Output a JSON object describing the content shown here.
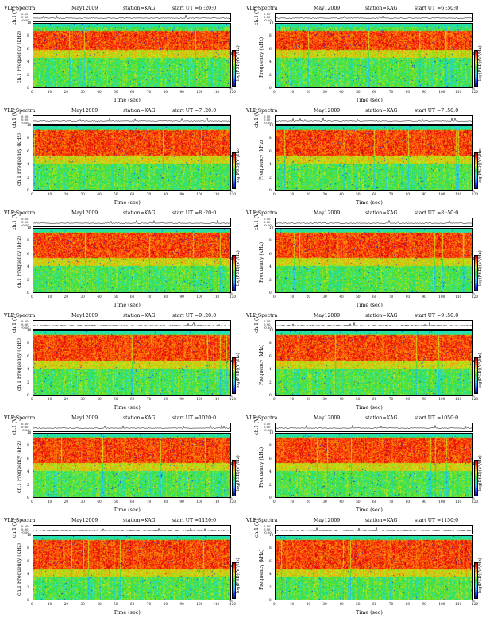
{
  "colors": {
    "background": "#ffffff",
    "spectrogram_base": "#3ac8e8",
    "wave_line": "#000000"
  },
  "common": {
    "station": "station=KAG",
    "x_axis_label": "Time (sec)",
    "wave_axis_label": "ch.1 (V)",
    "freq_axis_label_left": "ch.1 Frequency (kHz)",
    "freq_axis_label_right": "Frequency (kHz)",
    "colorbar_label": "log(PSD)(V²/Hz)",
    "wave_ticks": [
      "0.50",
      "0.00",
      "-0.50"
    ],
    "freq_ticks": [
      "0",
      "2",
      "4",
      "6",
      "8",
      "10"
    ],
    "time_ticks": [
      "0",
      "10",
      "20",
      "30",
      "40",
      "50",
      "60",
      "70",
      "80",
      "90",
      "100",
      "110",
      "120"
    ],
    "colorbar_ticks": [
      "-4",
      "-6"
    ]
  },
  "chart_data": [
    {
      "type": "heatmap",
      "title": "VLF Spectra",
      "date": "May12009",
      "station": "station=KAG",
      "start": "start  UT  =6 :20:0",
      "xlabel": "Time (sec)",
      "ylabel": "Frequency (kHz)",
      "xlim": [
        0,
        120
      ],
      "ylim": [
        0,
        10
      ],
      "intense_band_khz": [
        6,
        9
      ]
    },
    {
      "type": "heatmap",
      "title": "VLF Spectra",
      "date": "May12009",
      "station": "station=KAG",
      "start": "start  UT  =6 :50:0",
      "xlabel": "Time (sec)",
      "ylabel": "Frequency (kHz)",
      "xlim": [
        0,
        120
      ],
      "ylim": [
        0,
        10
      ],
      "intense_band_khz": [
        6,
        9
      ]
    },
    {
      "type": "heatmap",
      "title": "VLF Spectra",
      "date": "May12009",
      "station": "station=KAG",
      "start": "start  UT  =7 :20:0",
      "xlabel": "Time (sec)",
      "ylabel": "Frequency (kHz)",
      "xlim": [
        0,
        120
      ],
      "ylim": [
        0,
        10
      ],
      "intense_band_khz": [
        5.5,
        9.5
      ]
    },
    {
      "type": "heatmap",
      "title": "VLF Spectra",
      "date": "May12009",
      "station": "station=KAG",
      "start": "start  UT  =7 :50:0",
      "xlabel": "Time (sec)",
      "ylabel": "Frequency (kHz)",
      "xlim": [
        0,
        120
      ],
      "ylim": [
        0,
        10
      ],
      "intense_band_khz": [
        5.5,
        9.5
      ]
    },
    {
      "type": "heatmap",
      "title": "VLF Spectra",
      "date": "May12009",
      "station": "station=KAG",
      "start": "start  UT  =8 :20:0",
      "xlabel": "Time (sec)",
      "ylabel": "Frequency (kHz)",
      "xlim": [
        0,
        120
      ],
      "ylim": [
        0,
        10
      ],
      "intense_band_khz": [
        5.5,
        9.5
      ]
    },
    {
      "type": "heatmap",
      "title": "VLF Spectra",
      "date": "May12009",
      "station": "station=KAG",
      "start": "start  UT  =8 :50:0",
      "xlabel": "Time (sec)",
      "ylabel": "Frequency (kHz)",
      "xlim": [
        0,
        120
      ],
      "ylim": [
        0,
        10
      ],
      "intense_band_khz": [
        5.5,
        9.5
      ]
    },
    {
      "type": "heatmap",
      "title": "VLF Spectra",
      "date": "May12009",
      "station": "station=KAG",
      "start": "start  UT  =9 :20:0",
      "xlabel": "Time (sec)",
      "ylabel": "Frequency (kHz)",
      "xlim": [
        0,
        120
      ],
      "ylim": [
        0,
        10
      ],
      "intense_band_khz": [
        5.5,
        9.5
      ]
    },
    {
      "type": "heatmap",
      "title": "VLF Spectra",
      "date": "May12009",
      "station": "station=KAG",
      "start": "start  UT  =9 :50:0",
      "xlabel": "Time (sec)",
      "ylabel": "Frequency (kHz)",
      "xlim": [
        0,
        120
      ],
      "ylim": [
        0,
        10
      ],
      "intense_band_khz": [
        5.5,
        9.5
      ]
    },
    {
      "type": "heatmap",
      "title": "VLF Spectra",
      "date": "May12009",
      "station": "station=KAG",
      "start": "start  UT  =1020:0",
      "xlabel": "Time (sec)",
      "ylabel": "Frequency (kHz)",
      "xlim": [
        0,
        120
      ],
      "ylim": [
        0,
        10
      ],
      "intense_band_khz": [
        5.5,
        9.5
      ]
    },
    {
      "type": "heatmap",
      "title": "VLF Spectra",
      "date": "May12009",
      "station": "station=KAG",
      "start": "start  UT  =1050:0",
      "xlabel": "Time (sec)",
      "ylabel": "Frequency (kHz)",
      "xlim": [
        0,
        120
      ],
      "ylim": [
        0,
        10
      ],
      "intense_band_khz": [
        5.5,
        9.5
      ]
    },
    {
      "type": "heatmap",
      "title": "VLF Spectra",
      "date": "May12009",
      "station": "station=KAG",
      "start": "start  UT  =1120:0",
      "xlabel": "Time (sec)",
      "ylabel": "Frequency (kHz)",
      "xlim": [
        0,
        120
      ],
      "ylim": [
        0,
        10
      ],
      "intense_band_khz": [
        5,
        9.5
      ]
    },
    {
      "type": "heatmap",
      "title": "VLF Spectra",
      "date": "May12009",
      "station": "station=KAG",
      "start": "start  UT  =1150:0",
      "xlabel": "Time (sec)",
      "ylabel": "Frequency (kHz)",
      "xlim": [
        0,
        120
      ],
      "ylim": [
        0,
        10
      ],
      "intense_band_khz": [
        5,
        9.5
      ]
    }
  ]
}
